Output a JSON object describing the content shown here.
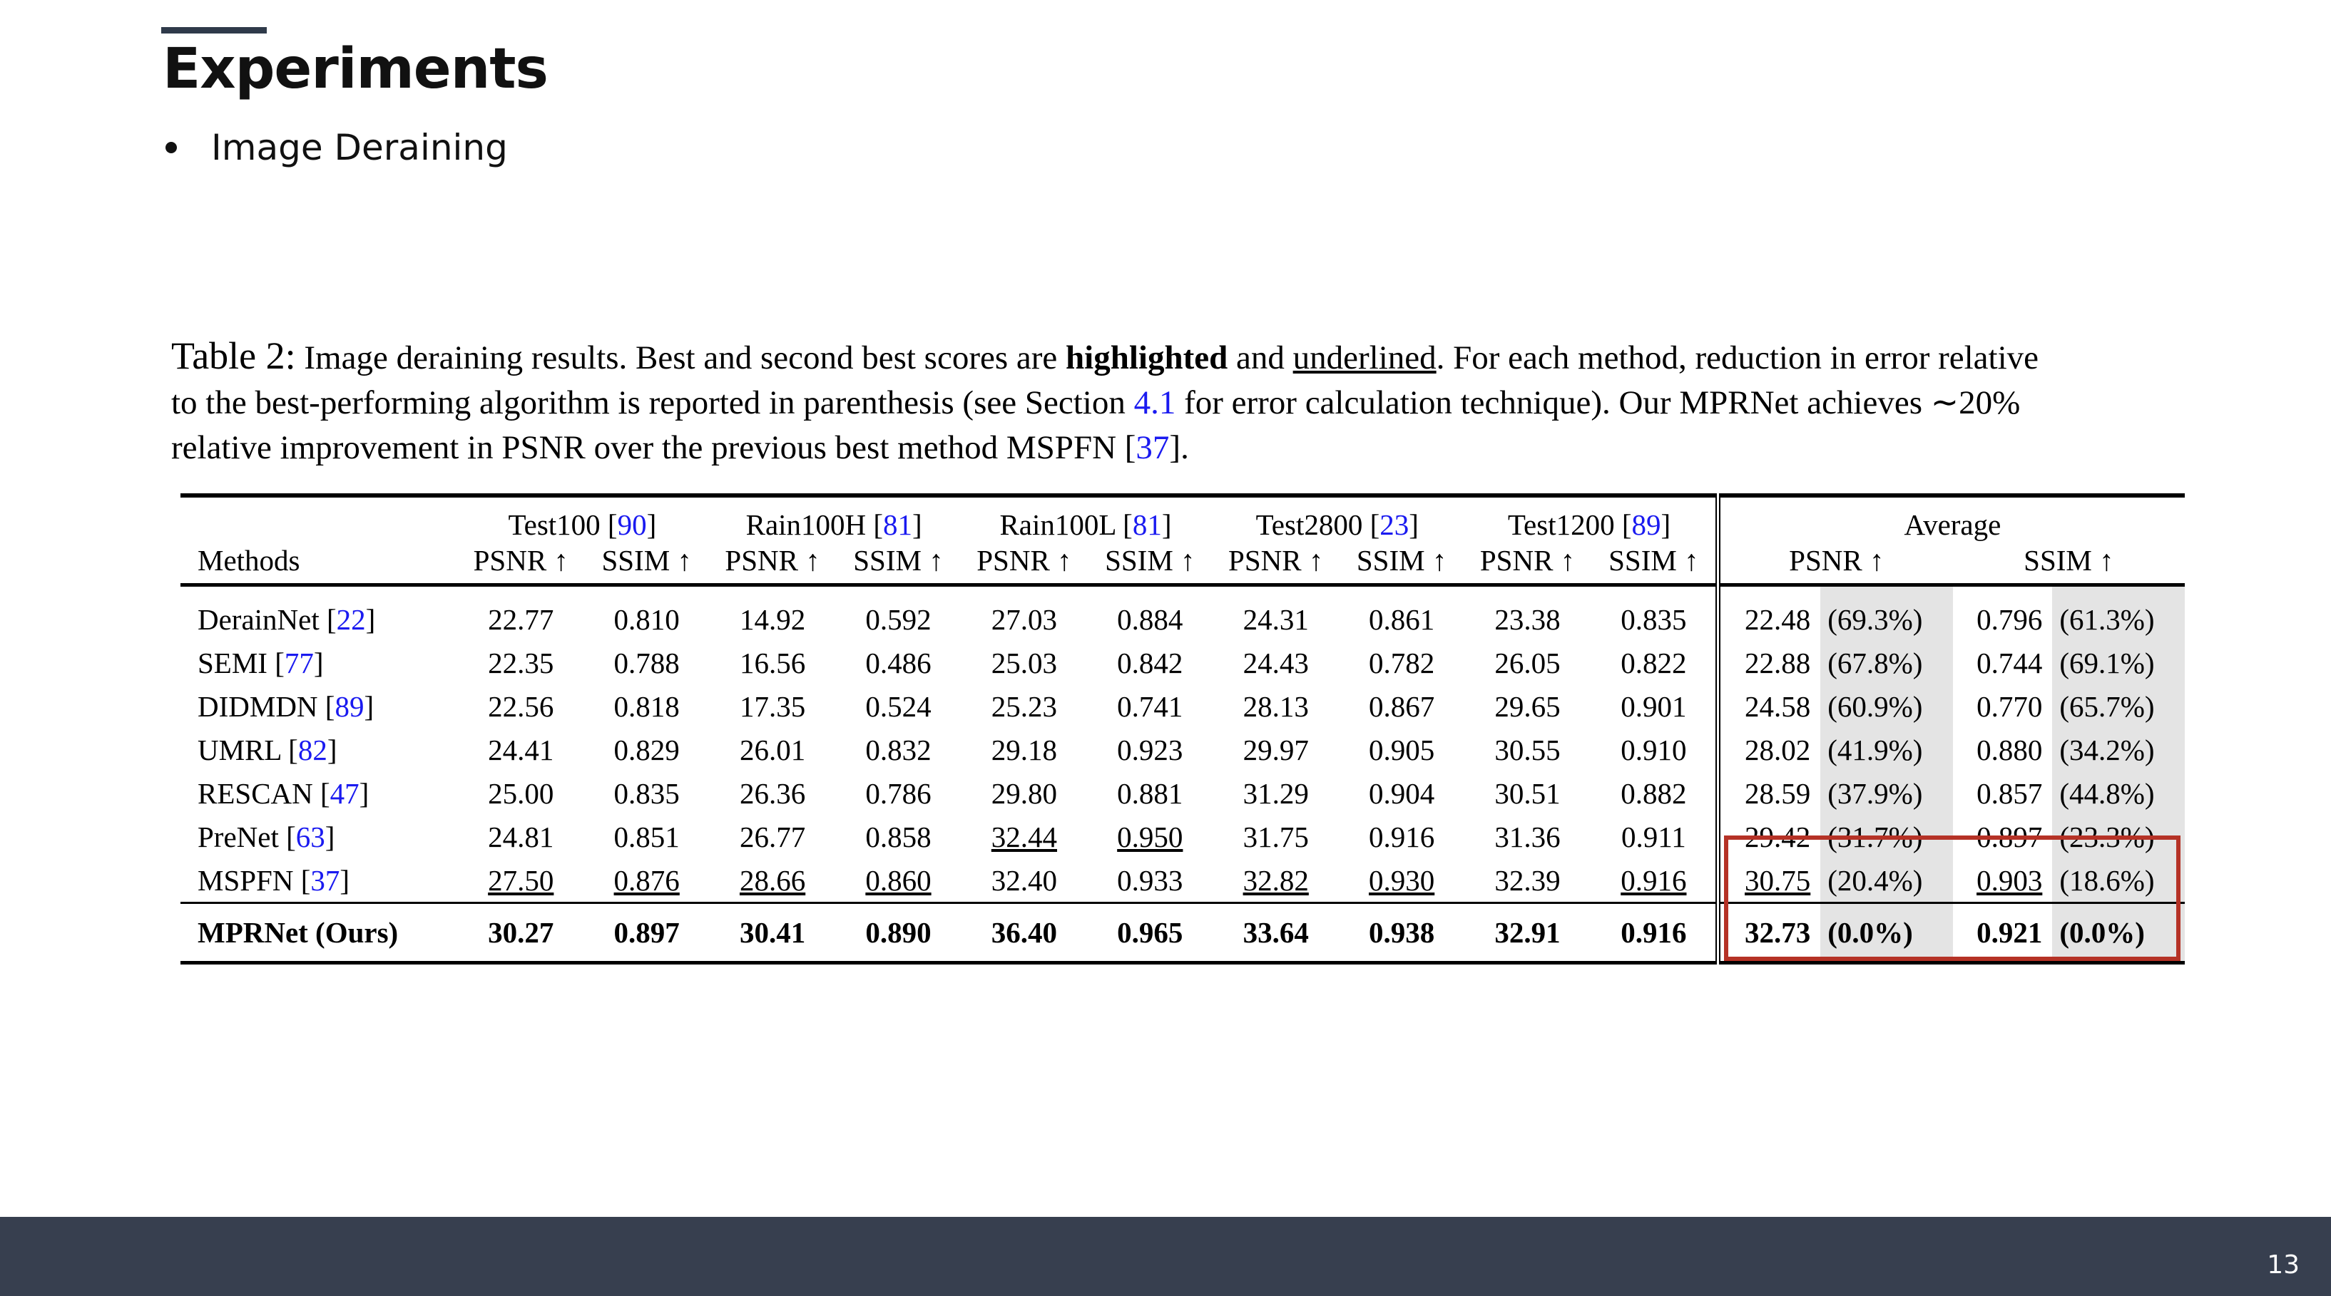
{
  "slide": {
    "title": "Experiments",
    "bullets": [
      "Image Deraining"
    ],
    "page_number": "13"
  },
  "caption": {
    "label": "Table 2:",
    "line1_a": "Image deraining results. Best and second best scores are ",
    "highlighted": "highlighted",
    "and": " and ",
    "underlined": "underlined",
    "line1_b": ". For each method, reduction in error relative",
    "line2_a": "to the best-performing algorithm is reported in parenthesis (see Section ",
    "section_ref": "4.1",
    "line2_b": " for error calculation technique). Our MPRNet achieves ∼20%",
    "line3_a": "relative improvement in PSNR over the previous best method MSPFN [",
    "mspfn_ref": "37",
    "line3_b": "]."
  },
  "table": {
    "methods_header": "Methods",
    "datasets": [
      {
        "name": "Test100 [",
        "ref": "90",
        "close": "]"
      },
      {
        "name": "Rain100H [",
        "ref": "81",
        "close": "]"
      },
      {
        "name": "Rain100L [",
        "ref": "81",
        "close": "]"
      },
      {
        "name": "Test2800 [",
        "ref": "23",
        "close": "]"
      },
      {
        "name": "Test1200 [",
        "ref": "89",
        "close": "]"
      }
    ],
    "average_header": "Average",
    "psnr_label": "PSNR ↑",
    "ssim_label": "SSIM ↑",
    "rows": [
      {
        "name": "DerainNet [",
        "ref": "22",
        "close": "]",
        "vals": [
          "22.77",
          "0.810",
          "14.92",
          "0.592",
          "27.03",
          "0.884",
          "24.31",
          "0.861",
          "23.38",
          "0.835"
        ],
        "avg": [
          "22.48",
          "(69.3%)",
          "0.796",
          "(61.3%)"
        ]
      },
      {
        "name": "SEMI [",
        "ref": "77",
        "close": "]",
        "vals": [
          "22.35",
          "0.788",
          "16.56",
          "0.486",
          "25.03",
          "0.842",
          "24.43",
          "0.782",
          "26.05",
          "0.822"
        ],
        "avg": [
          "22.88",
          "(67.8%)",
          "0.744",
          "(69.1%)"
        ]
      },
      {
        "name": "DIDMDN [",
        "ref": "89",
        "close": "]",
        "vals": [
          "22.56",
          "0.818",
          "17.35",
          "0.524",
          "25.23",
          "0.741",
          "28.13",
          "0.867",
          "29.65",
          "0.901"
        ],
        "avg": [
          "24.58",
          "(60.9%)",
          "0.770",
          "(65.7%)"
        ]
      },
      {
        "name": "UMRL [",
        "ref": "82",
        "close": "]",
        "vals": [
          "24.41",
          "0.829",
          "26.01",
          "0.832",
          "29.18",
          "0.923",
          "29.97",
          "0.905",
          "30.55",
          "0.910"
        ],
        "avg": [
          "28.02",
          "(41.9%)",
          "0.880",
          "(34.2%)"
        ]
      },
      {
        "name": "RESCAN [",
        "ref": "47",
        "close": "]",
        "vals": [
          "25.00",
          "0.835",
          "26.36",
          "0.786",
          "29.80",
          "0.881",
          "31.29",
          "0.904",
          "30.51",
          "0.882"
        ],
        "avg": [
          "28.59",
          "(37.9%)",
          "0.857",
          "(44.8%)"
        ]
      },
      {
        "name": "PreNet [",
        "ref": "63",
        "close": "]",
        "vals": [
          "24.81",
          "0.851",
          "26.77",
          "0.858",
          "32.44",
          "0.950",
          "31.75",
          "0.916",
          "31.36",
          "0.911"
        ],
        "avg": [
          "29.42",
          "(31.7%)",
          "0.897",
          "(23.3%)"
        ]
      },
      {
        "name": "MSPFN [",
        "ref": "37",
        "close": "]",
        "vals": [
          "27.50",
          "0.876",
          "28.66",
          "0.860",
          "32.40",
          "0.933",
          "32.82",
          "0.930",
          "32.39",
          "0.916"
        ],
        "avg": [
          "30.75",
          "(20.4%)",
          "0.903",
          "(18.6%)"
        ]
      }
    ],
    "ours": {
      "name": "MPRNet (Ours)",
      "vals": [
        "30.27",
        "0.897",
        "30.41",
        "0.890",
        "36.40",
        "0.965",
        "33.64",
        "0.938",
        "32.91",
        "0.916"
      ],
      "avg": [
        "32.73",
        "(0.0%)",
        "0.921",
        "(0.0%)"
      ]
    },
    "underlined_cells": [
      "5-4",
      "5-5",
      "6-0",
      "6-1",
      "6-2",
      "6-3",
      "6-6",
      "6-7",
      "6-9"
    ],
    "underlined_avg": [
      "6-0",
      "6-2"
    ]
  },
  "colors": {
    "footer": "#373f4f",
    "highlight_box": "#b53226",
    "reference_link": "#1a1af0",
    "gray_cell": "#e4e4e4"
  }
}
